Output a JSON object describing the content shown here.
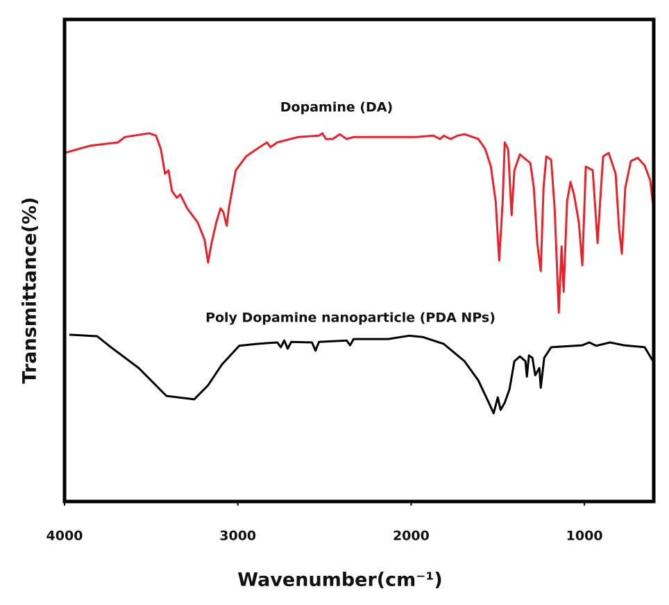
{
  "chart_data": {
    "type": "line",
    "x_label": "Wavenumber(cm⁻¹)",
    "y_label": "Transmittance(%)",
    "xlim": [
      4000,
      600
    ],
    "xticks": [
      4000,
      3000,
      2000,
      1000
    ],
    "ylim": [
      0,
      100
    ],
    "series": [
      {
        "name": "Dopamine (DA)",
        "color": "#e8222a",
        "x": [
          4000,
          3852,
          3692,
          3652,
          3512,
          3472,
          3444,
          3420,
          3400,
          3380,
          3352,
          3332,
          3292,
          3232,
          3192,
          3172,
          3152,
          3124,
          3100,
          3084,
          3064,
          3052,
          3012,
          2952,
          2892,
          2832,
          2812,
          2772,
          2652,
          2532,
          2512,
          2492,
          2452,
          2412,
          2372,
          2332,
          2172,
          1972,
          1872,
          1832,
          1812,
          1772,
          1732,
          1692,
          1612,
          1572,
          1540,
          1512,
          1492,
          1472,
          1460,
          1440,
          1420,
          1404,
          1372,
          1312,
          1292,
          1272,
          1252,
          1236,
          1220,
          1192,
          1172,
          1148,
          1132,
          1120,
          1100,
          1080,
          1060,
          1032,
          1012,
          992,
          952,
          924,
          908,
          892,
          860,
          820,
          800,
          784,
          764,
          732,
          692,
          652,
          620,
          604
        ],
        "values": [
          72.3,
          73.8,
          74.5,
          75.6,
          76.4,
          75.9,
          73.1,
          68.0,
          68.7,
          64.4,
          63.0,
          63.7,
          60.8,
          57.9,
          54.3,
          49.6,
          53.6,
          57.9,
          60.8,
          60.1,
          57.2,
          60.8,
          68.7,
          71.6,
          73.1,
          74.5,
          73.5,
          74.5,
          75.6,
          75.9,
          76.4,
          75.2,
          75.2,
          76.2,
          75.2,
          75.6,
          75.6,
          75.6,
          75.9,
          75.2,
          75.9,
          75.2,
          75.9,
          76.2,
          75.2,
          73.1,
          69.5,
          62.2,
          50.0,
          62.2,
          74.5,
          73.1,
          59.4,
          68.7,
          72.0,
          70.2,
          65.1,
          53.6,
          47.8,
          65.1,
          71.6,
          70.9,
          60.8,
          39.2,
          52.9,
          43.5,
          62.2,
          66.3,
          63.7,
          57.9,
          49.0,
          69.5,
          68.7,
          53.6,
          63.0,
          71.6,
          72.3,
          68.0,
          56.5,
          51.4,
          65.1,
          70.6,
          71.3,
          69.7,
          66.6,
          61.5
        ]
      },
      {
        "name": "Poly Dopamine nanoparticle (PDA NPs)",
        "color": "#000000",
        "x": [
          3972,
          3812,
          3732,
          3572,
          3412,
          3252,
          3172,
          3092,
          2992,
          2892,
          2772,
          2752,
          2732,
          2712,
          2692,
          2572,
          2552,
          2532,
          2372,
          2352,
          2332,
          2132,
          2012,
          1932,
          1812,
          1692,
          1612,
          1552,
          1524,
          1500,
          1484,
          1460,
          1432,
          1404,
          1372,
          1340,
          1332,
          1320,
          1300,
          1284,
          1260,
          1252,
          1232,
          1192,
          1012,
          972,
          932,
          852,
          772,
          652,
          604
        ],
        "values": [
          34.6,
          34.3,
          32.0,
          27.7,
          21.9,
          21.2,
          24.1,
          28.4,
          32.3,
          32.7,
          33.0,
          32.0,
          33.4,
          31.7,
          33.1,
          33.0,
          31.3,
          33.1,
          33.4,
          32.4,
          33.7,
          33.7,
          34.4,
          34.1,
          32.7,
          29.1,
          25.1,
          20.5,
          18.3,
          21.6,
          19.0,
          20.5,
          23.3,
          29.1,
          30.1,
          29.1,
          25.9,
          30.3,
          29.8,
          26.2,
          27.7,
          23.6,
          29.8,
          32.0,
          32.4,
          33.0,
          32.3,
          33.0,
          32.4,
          32.0,
          29.1
        ]
      }
    ]
  }
}
